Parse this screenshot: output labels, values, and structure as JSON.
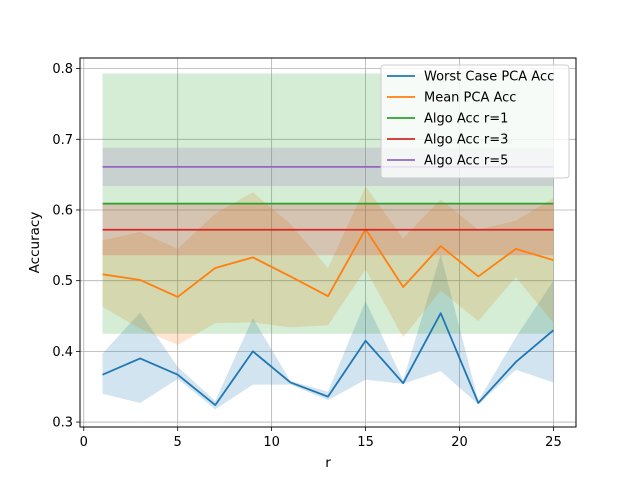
{
  "chart_data": {
    "type": "line",
    "xlabel": "r",
    "ylabel": "Accuracy",
    "xlim": [
      -0.2,
      26.2
    ],
    "ylim": [
      0.293,
      0.815
    ],
    "xticks": [
      0,
      5,
      10,
      15,
      20,
      25
    ],
    "yticks": [
      0.3,
      0.4,
      0.5,
      0.6,
      0.7,
      0.8
    ],
    "xtick_labels": [
      "0",
      "5",
      "10",
      "15",
      "20",
      "25"
    ],
    "ytick_labels": [
      "0.3",
      "0.4",
      "0.5",
      "0.6",
      "0.7",
      "0.8"
    ],
    "grid": true,
    "legend_position": "top-right",
    "x": [
      1,
      3,
      5,
      7,
      9,
      11,
      13,
      15,
      17,
      19,
      21,
      23,
      25
    ],
    "series": [
      {
        "name": "Worst Case PCA Acc",
        "color": "#1f77b4",
        "values": [
          0.367,
          0.39,
          0.367,
          0.324,
          0.4,
          0.356,
          0.336,
          0.415,
          0.355,
          0.454,
          0.327,
          0.385,
          0.43
        ],
        "band_upper": [
          0.397,
          0.455,
          0.378,
          0.33,
          0.447,
          0.358,
          0.343,
          0.471,
          0.359,
          0.537,
          0.33,
          0.42,
          0.5
        ],
        "band_lower": [
          0.34,
          0.327,
          0.361,
          0.318,
          0.353,
          0.353,
          0.331,
          0.36,
          0.354,
          0.372,
          0.325,
          0.374,
          0.356
        ]
      },
      {
        "name": "Mean PCA Acc",
        "color": "#ff7f0e",
        "values": [
          0.509,
          0.501,
          0.477,
          0.518,
          0.533,
          0.506,
          0.478,
          0.573,
          0.491,
          0.549,
          0.506,
          0.545,
          0.529
        ],
        "band_upper": [
          0.557,
          0.569,
          0.545,
          0.595,
          0.625,
          0.58,
          0.518,
          0.633,
          0.56,
          0.615,
          0.572,
          0.585,
          0.617
        ],
        "band_lower": [
          0.463,
          0.432,
          0.409,
          0.44,
          0.441,
          0.434,
          0.437,
          0.516,
          0.42,
          0.486,
          0.443,
          0.505,
          0.44
        ]
      },
      {
        "name": "Algo Acc r=1",
        "color": "#2ca02c",
        "values": [
          0.609,
          0.609,
          0.609,
          0.609,
          0.609,
          0.609,
          0.609,
          0.609,
          0.609,
          0.609,
          0.609,
          0.609,
          0.609
        ],
        "band_upper": [
          0.793,
          0.793,
          0.793,
          0.793,
          0.793,
          0.793,
          0.793,
          0.793,
          0.793,
          0.793,
          0.793,
          0.793,
          0.793
        ],
        "band_lower": [
          0.425,
          0.425,
          0.425,
          0.425,
          0.425,
          0.425,
          0.425,
          0.425,
          0.425,
          0.425,
          0.425,
          0.425,
          0.425
        ]
      },
      {
        "name": "Algo Acc r=3",
        "color": "#d62728",
        "values": [
          0.572,
          0.572,
          0.572,
          0.572,
          0.572,
          0.572,
          0.572,
          0.572,
          0.572,
          0.572,
          0.572,
          0.572,
          0.572
        ],
        "band_upper": [
          0.608,
          0.608,
          0.608,
          0.608,
          0.608,
          0.608,
          0.608,
          0.608,
          0.608,
          0.608,
          0.608,
          0.608,
          0.608
        ],
        "band_lower": [
          0.536,
          0.536,
          0.536,
          0.536,
          0.536,
          0.536,
          0.536,
          0.536,
          0.536,
          0.536,
          0.536,
          0.536,
          0.536
        ]
      },
      {
        "name": "Algo Acc r=5",
        "color": "#9467bd",
        "values": [
          0.661,
          0.661,
          0.661,
          0.661,
          0.661,
          0.661,
          0.661,
          0.661,
          0.661,
          0.661,
          0.661,
          0.661,
          0.661
        ],
        "band_upper": [
          0.688,
          0.688,
          0.688,
          0.688,
          0.688,
          0.688,
          0.688,
          0.688,
          0.688,
          0.688,
          0.688,
          0.688,
          0.688
        ],
        "band_lower": [
          0.634,
          0.634,
          0.634,
          0.634,
          0.634,
          0.634,
          0.634,
          0.634,
          0.634,
          0.634,
          0.634,
          0.634,
          0.634
        ]
      }
    ]
  }
}
